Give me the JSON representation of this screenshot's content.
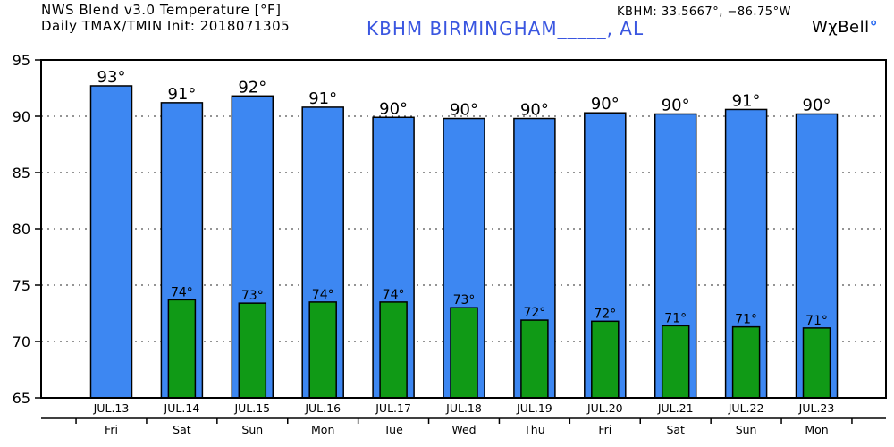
{
  "header": {
    "title_line1": "NWS Blend v3.0 Temperature [°F]",
    "title_line2": "Daily TMAX/TMIN Init: 2018071305",
    "station": "KBHM BIRMINGHAM_____, AL",
    "coordinates": "KBHM: 33.5667°, −86.75°W",
    "brand_name": "WχBell",
    "brand_mark": "°"
  },
  "chart_data": {
    "type": "bar",
    "categories": [
      "JUL.13",
      "JUL.14",
      "JUL.15",
      "JUL.16",
      "JUL.17",
      "JUL.18",
      "JUL.19",
      "JUL.20",
      "JUL.21",
      "JUL.22",
      "JUL.23"
    ],
    "weekdays": [
      "Fri",
      "Sat",
      "Sun",
      "Mon",
      "Tue",
      "Wed",
      "Thu",
      "Fri",
      "Sat",
      "Sun",
      "Mon"
    ],
    "series": [
      {
        "key": "tmax",
        "color": "#3d87f2",
        "values": [
          92.7,
          91.2,
          91.8,
          90.8,
          89.9,
          89.8,
          89.8,
          90.3,
          90.2,
          90.6,
          90.2
        ],
        "labels": [
          "93°",
          "91°",
          "92°",
          "91°",
          "90°",
          "90°",
          "90°",
          "90°",
          "90°",
          "91°",
          "90°"
        ]
      },
      {
        "key": "tmin",
        "color": "#109a16",
        "values": [
          null,
          73.7,
          73.4,
          73.5,
          73.5,
          73.0,
          71.9,
          71.8,
          71.4,
          71.3,
          71.2
        ],
        "labels": [
          "",
          "74°",
          "73°",
          "74°",
          "74°",
          "73°",
          "72°",
          "72°",
          "71°",
          "71°",
          "71°"
        ]
      }
    ],
    "ylim": [
      65,
      95
    ],
    "yticks": [
      65,
      70,
      75,
      80,
      85,
      90,
      95
    ],
    "grid": true
  }
}
